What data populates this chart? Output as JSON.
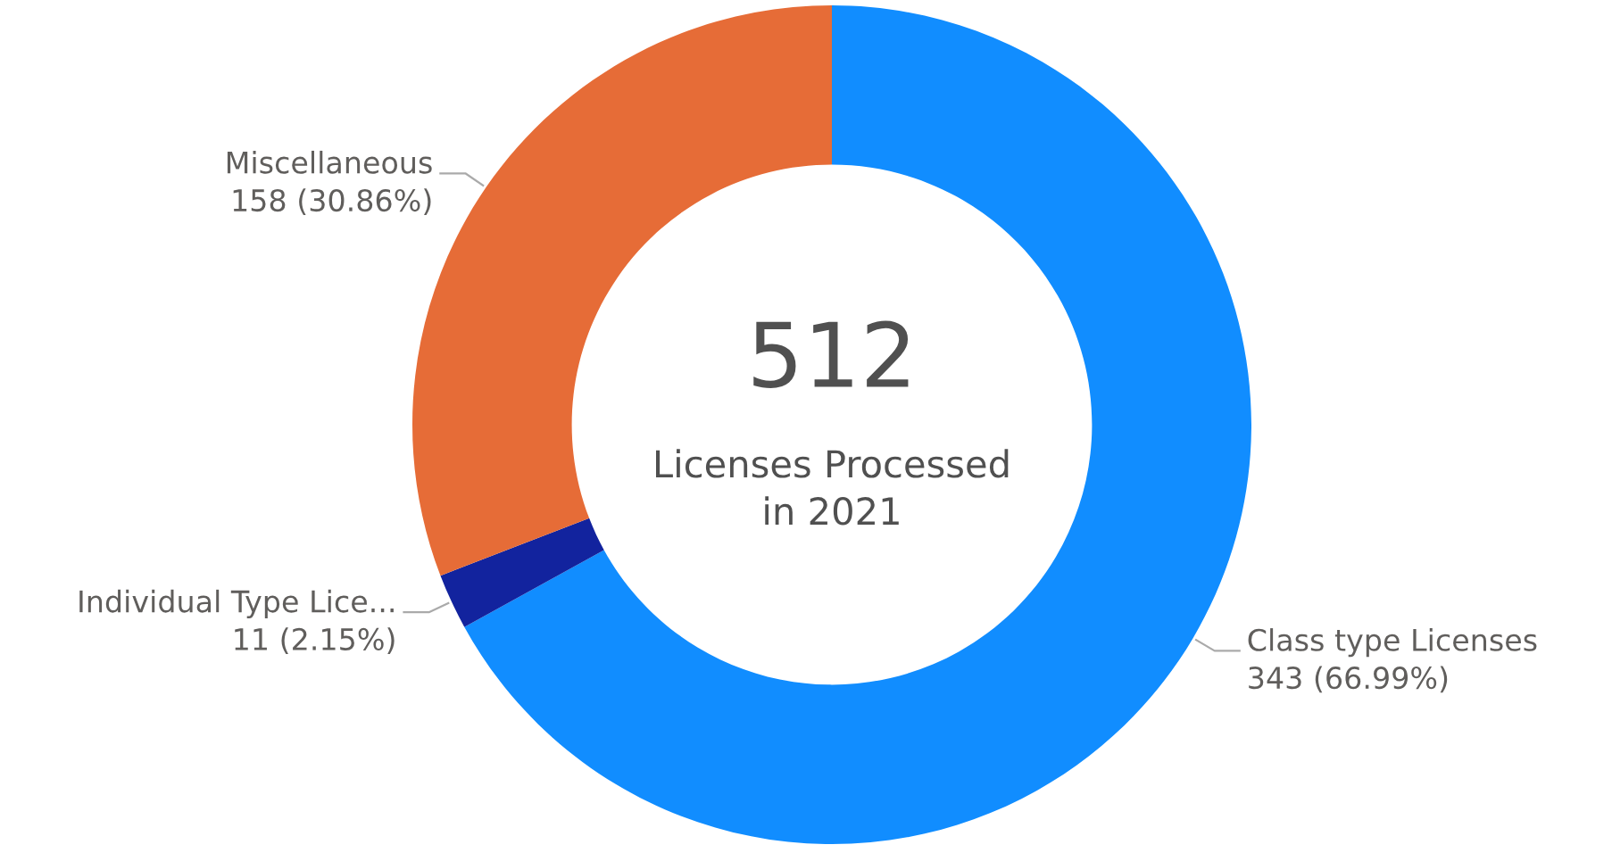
{
  "chart_data": {
    "type": "donut",
    "categories": [
      "Class type Licenses",
      "Individual Type Lice...",
      "Miscellaneous"
    ],
    "values": [
      343,
      11,
      158
    ],
    "colors": [
      "#118dff",
      "#12239e",
      "#e66c37"
    ],
    "value_labels": [
      "343 (66.99%)",
      "11 (2.15%)",
      "158 (30.86%)"
    ],
    "annotations": [
      "512",
      "Licenses Processed\nin 2021"
    ]
  }
}
